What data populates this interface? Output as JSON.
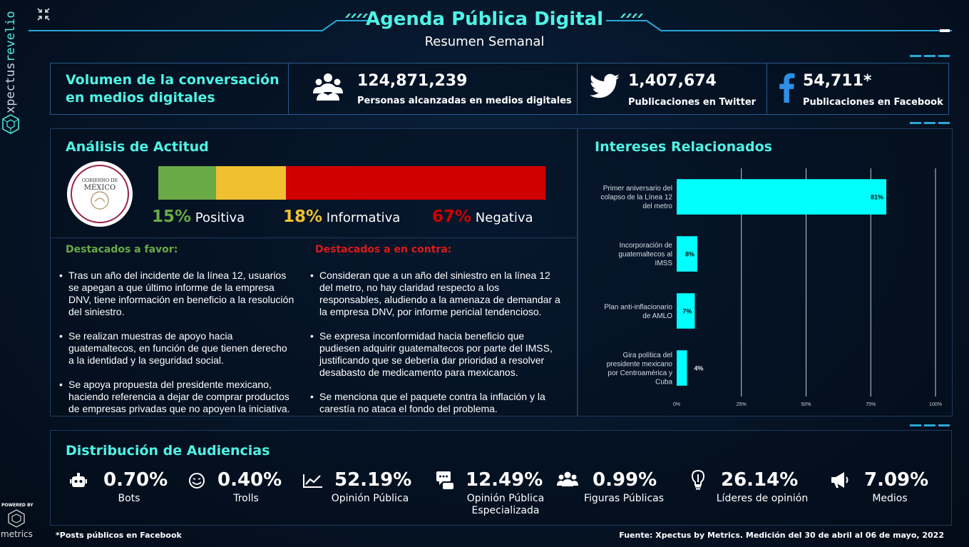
{
  "brand": {
    "name_part1": "xpectus",
    "name_part2": "revelio",
    "powered_by": "POWERED BY",
    "powered_name": "metrics"
  },
  "header": {
    "title": "Agenda Pública Digital",
    "subtitle": "Resumen Semanal",
    "expand_icon": "collapse-arrows-icon"
  },
  "kpis": {
    "title": "Volumen de la conversación en medios digitales",
    "title_line1": "Volumen de la conversación",
    "title_line2": "en medios digitales",
    "items": [
      {
        "icon": "people-icon",
        "value": "124,871,239",
        "label": "Personas alcanzadas en medios digitales"
      },
      {
        "icon": "twitter-icon",
        "value": "1,407,674",
        "label": "Publicaciones en Twitter"
      },
      {
        "icon": "facebook-icon",
        "value": "54,711*",
        "label": "Publicaciones en Facebook"
      }
    ]
  },
  "attitude": {
    "title": "Análisis de Actitud",
    "logo_text_top": "GOBIERNO DE",
    "logo_text_main": "MÉXICO",
    "segments": [
      {
        "pct_value": 15,
        "pct": "15%",
        "label": "Positiva",
        "color": "#6aaa46"
      },
      {
        "pct_value": 18,
        "pct": "18%",
        "label": "Informativa",
        "color": "#f0c030"
      },
      {
        "pct_value": 67,
        "pct": "67%",
        "label": "Negativa",
        "color": "#d00000"
      }
    ]
  },
  "favor": {
    "title": "Destacados a favor:",
    "color": "#6aaa46",
    "items": [
      "Tras un año del incidente de la línea 12, usuarios se apegan a que último informe de la empresa DNV, tiene información en beneficio a la resolución del siniestro.",
      "Se realizan muestras de apoyo hacia guatemaltecos, en función de que tienen derecho a la identidad y la seguridad social.",
      "Se apoya propuesta del presidente mexicano, haciendo referencia a dejar de comprar productos de empresas privadas que no apoyen la iniciativa."
    ]
  },
  "contra": {
    "title": "Destacados a en contra:",
    "color": "#e01818",
    "items": [
      "Consideran que a un año del siniestro en la línea 12 del metro, no hay claridad respecto a los responsables, aludiendo a la amenaza de demandar a la empresa DNV, por informe pericial tendencioso.",
      "Se expresa inconformidad hacia beneficio que pudiesen adquirir guatemaltecos por parte del IMSS, justificando que se debería dar prioridad a resolver desabasto de medicamento para mexicanos.",
      "Se menciona que el paquete contra la inflación y la carestía no ataca el fondo del problema."
    ]
  },
  "interests": {
    "title": "Intereses Relacionados"
  },
  "chart_data": {
    "type": "bar",
    "orientation": "horizontal",
    "categories": [
      [
        "Primer aniversario del",
        "colapso de la Línea 12",
        "del metro"
      ],
      [
        "Incorporación de",
        "guatemaltecos al",
        "IMSS"
      ],
      [
        "Plan anti-inflacionario",
        "de AMLO"
      ],
      [
        "Gira política del",
        "presidente mexicano",
        "por Centroamérica y",
        "Cuba"
      ]
    ],
    "values": [
      81,
      8,
      7,
      4
    ],
    "data_labels": [
      "81%",
      "8%",
      "7%",
      "4%"
    ],
    "xlim": [
      0,
      100
    ],
    "x_ticks": [
      "0%",
      "25%",
      "50%",
      "75%",
      "100%"
    ],
    "bar_color": "#00ffff",
    "grid": true
  },
  "audience": {
    "title": "Distribución de Audiencias",
    "items": [
      {
        "icon": "robot-icon",
        "value": "0.70%",
        "label": "Bots"
      },
      {
        "icon": "troll-face-icon",
        "value": "0.40%",
        "label": "Trolls"
      },
      {
        "icon": "line-chart-icon",
        "value": "52.19%",
        "label": "Opinión Pública"
      },
      {
        "icon": "chat-bubbles-icon",
        "value": "12.49%",
        "label": "Opinión Pública Especializada"
      },
      {
        "icon": "users-group-icon",
        "value": "0.99%",
        "label": "Figuras Públicas"
      },
      {
        "icon": "lightbulb-icon",
        "value": "26.14%",
        "label": "Líderes de opinión"
      },
      {
        "icon": "megaphone-icon",
        "value": "7.09%",
        "label": "Medios"
      }
    ]
  },
  "footer": {
    "note": "*Posts públicos en Facebook",
    "source": "Fuente: Xpectus by Metrics. Medición del 30 de abril al 06 de mayo, 2022"
  }
}
